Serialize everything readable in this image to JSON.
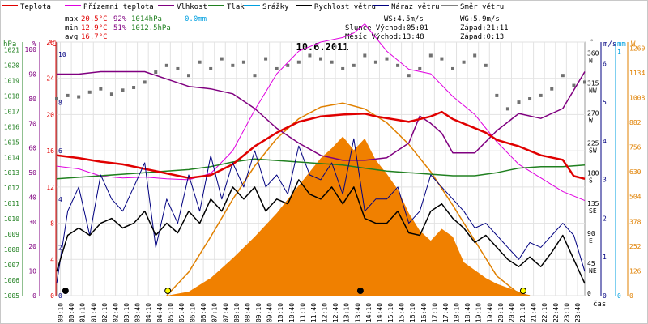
{
  "chart_data": {
    "type": "line",
    "title": "10.6.2011",
    "legend": [
      {
        "label": "Teplota",
        "color": "#e00000"
      },
      {
        "label": "Přízemní teplota",
        "color": "#e000e0"
      },
      {
        "label": "Vlhkost",
        "color": "#800080"
      },
      {
        "label": "Tlak",
        "color": "#208020"
      },
      {
        "label": "Srážky",
        "color": "#00a0e0"
      },
      {
        "label": "Rychlost větru",
        "color": "#000000"
      },
      {
        "label": "Náraz větru",
        "color": "#000080"
      },
      {
        "label": "Směr větru",
        "color": "#808080"
      }
    ],
    "stats": {
      "max": {
        "label": "max",
        "temp": "20.5°C",
        "hum": "92%",
        "press": "1014hPa",
        "rain": "0.0mm"
      },
      "min": {
        "label": "min",
        "temp": "12.9°C",
        "hum": "51%",
        "press": "1012.5hPa"
      },
      "avg": {
        "label": "avg",
        "temp": "16.7°C"
      }
    },
    "info": {
      "ws": "WS:4.5m/s",
      "wg": "WG:5.9m/s",
      "slunce": "Slunce Východ:05:01",
      "slunce_zapad": "Západ:21:11",
      "mesic": "Měsíc  Východ:13:48",
      "mesic_zapad": "Západ:0:13"
    },
    "axes": {
      "hpa_title": "hPa",
      "pct_title": "%",
      "c_title": "°C",
      "dir_title": "°",
      "ms_title": "m/s",
      "mm_title": "mm",
      "w_title": "W",
      "x_title": "čas",
      "hpa_ticks": [
        1021,
        1020,
        1019,
        1018,
        1017,
        1016,
        1015,
        1014,
        1013,
        1012,
        1011,
        1010,
        1009,
        1008,
        1007,
        1006,
        1005
      ],
      "pct_ticks": [
        100,
        90,
        80,
        70,
        60,
        50,
        40,
        30,
        20,
        10,
        0
      ],
      "c_ticks": [
        28,
        24,
        20,
        16,
        12,
        8,
        4,
        0
      ],
      "wind_ticks": [
        10,
        8,
        6,
        4,
        2,
        0
      ],
      "dir_ticks": [
        {
          "v": "360",
          "l": "N"
        },
        {
          "v": "315",
          "l": "NW"
        },
        {
          "v": "270",
          "l": "W"
        },
        {
          "v": "225",
          "l": "SW"
        },
        {
          "v": "180",
          "l": "S"
        },
        {
          "v": "135",
          "l": "SE"
        },
        {
          "v": "90",
          "l": "E"
        },
        {
          "v": "45",
          "l": "NE"
        },
        {
          "v": "0",
          "l": ""
        }
      ],
      "ms_ticks": [
        6,
        5,
        4,
        3,
        2,
        1,
        0
      ],
      "mm_ticks": [
        1,
        0
      ],
      "w_ticks": [
        1260,
        1134,
        1008,
        882,
        756,
        630,
        504,
        378,
        252,
        126,
        0
      ],
      "x_ticks": [
        "00:10",
        "00:40",
        "01:10",
        "01:40",
        "02:10",
        "02:40",
        "03:10",
        "03:40",
        "04:10",
        "04:40",
        "05:10",
        "05:40",
        "06:10",
        "06:40",
        "07:10",
        "07:40",
        "08:10",
        "08:40",
        "09:10",
        "09:40",
        "10:10",
        "10:40",
        "11:10",
        "11:40",
        "12:10",
        "12:40",
        "13:10",
        "13:40",
        "14:10",
        "14:40",
        "15:10",
        "15:40",
        "16:10",
        "16:40",
        "17:10",
        "17:40",
        "18:10",
        "18:40",
        "19:10",
        "19:40",
        "20:10",
        "20:40",
        "21:10",
        "21:40",
        "22:10",
        "22:40",
        "23:10",
        "23:40"
      ]
    },
    "series": {
      "temp": {
        "x": [
          0,
          1,
          2,
          3,
          4,
          5,
          6,
          7,
          8,
          9,
          10,
          11,
          12,
          13,
          14,
          14.5,
          15,
          16,
          17,
          17.5,
          18,
          19,
          19.5,
          20,
          21,
          22,
          23,
          23.5,
          24
        ],
        "y": [
          15.5,
          15.2,
          14.8,
          14.5,
          14,
          13.5,
          13,
          13.3,
          14.5,
          16.5,
          18,
          19.2,
          19.8,
          20,
          20.1,
          19.8,
          19.6,
          19.2,
          19.8,
          20.3,
          19.5,
          18.5,
          18,
          17.2,
          16.5,
          15.5,
          15,
          13.2,
          12.9
        ]
      },
      "ground": {
        "x": [
          0,
          1,
          2,
          3,
          4,
          5,
          6,
          7,
          8,
          9,
          10,
          11,
          12,
          13,
          13.5,
          14,
          14.5,
          15,
          16,
          17,
          18,
          19,
          20,
          21,
          22,
          23,
          24
        ],
        "y": [
          14.3,
          14,
          13.2,
          13,
          13.1,
          12.9,
          12.8,
          13.5,
          16,
          20.5,
          24.5,
          27,
          28,
          28.5,
          29,
          30,
          28.5,
          27,
          25,
          24.5,
          22,
          20,
          17,
          14.5,
          13,
          11.5,
          10.5
        ]
      },
      "humidity": {
        "x": [
          0,
          1,
          2,
          3,
          4,
          5,
          6,
          7,
          8,
          9,
          10,
          11,
          12,
          13,
          14,
          15,
          16,
          16.5,
          17,
          17.5,
          18,
          19,
          20,
          21,
          22,
          23,
          24
        ],
        "y": [
          90,
          90,
          91,
          91,
          91,
          88,
          85,
          84,
          82,
          76,
          68,
          62,
          57,
          55,
          55,
          56,
          62,
          73,
          70,
          66,
          58,
          58,
          67,
          74,
          72,
          76,
          91
        ]
      },
      "pressure": {
        "x": [
          0,
          1,
          2,
          3,
          4,
          5,
          6,
          7,
          8,
          9,
          10,
          11,
          12,
          13,
          14,
          15,
          16,
          17,
          18,
          19,
          20,
          21,
          22,
          23,
          24
        ],
        "y": [
          1012.6,
          1012.7,
          1012.8,
          1012.9,
          1013,
          1013.1,
          1013.2,
          1013.4,
          1013.7,
          1013.9,
          1013.8,
          1013.7,
          1013.6,
          1013.5,
          1013.3,
          1013.1,
          1013,
          1012.9,
          1012.8,
          1012.8,
          1013,
          1013.3,
          1013.4,
          1013.4,
          1013.5
        ]
      },
      "wind": {
        "x": [
          0,
          0.5,
          1,
          1.5,
          2,
          2.5,
          3,
          3.5,
          4,
          4.5,
          5,
          5.5,
          6,
          6.5,
          7,
          7.5,
          8,
          8.5,
          9,
          9.5,
          10,
          10.5,
          11,
          11.5,
          12,
          12.5,
          13,
          13.5,
          14,
          14.5,
          15,
          15.5,
          16,
          16.5,
          17,
          17.5,
          18,
          18.5,
          19,
          19.5,
          20,
          20.5,
          21,
          21.5,
          22,
          22.5,
          23,
          23.5,
          24
        ],
        "y": [
          1,
          2.5,
          2.8,
          2.5,
          3,
          3.2,
          2.8,
          3,
          3.5,
          2.5,
          3,
          2.6,
          3.5,
          3,
          4,
          3.5,
          4.5,
          4,
          4.5,
          3.5,
          4,
          3.8,
          4.8,
          4.2,
          4,
          4.5,
          3.8,
          4.5,
          3.2,
          3,
          3,
          3.5,
          2.6,
          2.5,
          3.5,
          3.8,
          3.2,
          2.8,
          2.2,
          2.5,
          2,
          1.5,
          1.2,
          1.6,
          1.2,
          1.8,
          2.5,
          1.5,
          0.5
        ]
      },
      "gust": {
        "x": [
          0,
          0.5,
          1,
          1.5,
          2,
          2.5,
          3,
          3.5,
          4,
          4.5,
          5,
          5.5,
          6,
          6.5,
          7,
          7.5,
          8,
          8.5,
          9,
          9.5,
          10,
          10.5,
          11,
          11.5,
          12,
          12.5,
          13,
          13.5,
          14,
          14.5,
          15,
          15.5,
          16,
          16.5,
          17,
          17.5,
          18,
          18.5,
          19,
          19.5,
          20,
          20.5,
          21,
          21.5,
          22,
          22.5,
          23,
          23.5,
          24
        ],
        "y": [
          0.5,
          3.5,
          4.5,
          2.5,
          5,
          4,
          3.5,
          4.5,
          5.5,
          2,
          4,
          3,
          5,
          3.5,
          5.8,
          4,
          5.5,
          4.5,
          6,
          4.5,
          5,
          4.2,
          6.2,
          5,
          4.8,
          5.5,
          4.2,
          6.5,
          3.5,
          4,
          4,
          4.5,
          3,
          3.5,
          5,
          4.5,
          4,
          3.5,
          2.8,
          3,
          2.5,
          2,
          1.5,
          2.2,
          2,
          2.5,
          3,
          2.5,
          1
        ]
      },
      "dir": {
        "x": [
          0,
          0.5,
          1,
          1.5,
          2,
          2.5,
          3,
          3.5,
          4,
          4.5,
          5,
          5.5,
          6,
          6.5,
          7,
          7.5,
          8,
          8.5,
          9,
          9.5,
          10,
          10.5,
          11,
          11.5,
          12,
          12.5,
          13,
          13.5,
          14,
          14.5,
          15,
          15.5,
          16,
          16.5,
          17,
          17.5,
          18,
          18.5,
          19,
          19.5,
          20,
          20.5,
          21,
          21.5,
          22,
          22.5,
          23,
          23.5,
          24
        ],
        "y": [
          295,
          300,
          298,
          305,
          310,
          302,
          308,
          312,
          320,
          335,
          345,
          340,
          330,
          350,
          340,
          355,
          345,
          350,
          330,
          355,
          340,
          345,
          350,
          360,
          355,
          350,
          340,
          345,
          360,
          350,
          355,
          345,
          330,
          340,
          360,
          355,
          340,
          350,
          360,
          345,
          300,
          280,
          290,
          295,
          300,
          310,
          330,
          315,
          320
        ]
      },
      "solar": {
        "x": [
          0,
          5,
          6,
          7,
          8,
          9,
          10,
          11,
          12,
          12.5,
          13,
          13.5,
          14,
          14.5,
          15,
          15.5,
          16,
          16.5,
          17,
          17.5,
          18,
          18.5,
          19,
          19.5,
          20,
          20.5,
          21,
          21.5,
          22,
          24
        ],
        "y": [
          0,
          0,
          20,
          90,
          190,
          300,
          420,
          560,
          700,
          750,
          810,
          740,
          800,
          690,
          620,
          540,
          420,
          330,
          280,
          340,
          300,
          170,
          130,
          90,
          60,
          40,
          20,
          0,
          0,
          0
        ]
      },
      "solar_theor": {
        "x": [
          5,
          6,
          7,
          8,
          9,
          10,
          11,
          12,
          13,
          14,
          15,
          16,
          17,
          18,
          19,
          20,
          21,
          21.5
        ],
        "y": [
          0,
          120,
          300,
          490,
          660,
          800,
          900,
          960,
          980,
          950,
          880,
          770,
          630,
          460,
          280,
          100,
          10,
          0
        ]
      }
    }
  }
}
